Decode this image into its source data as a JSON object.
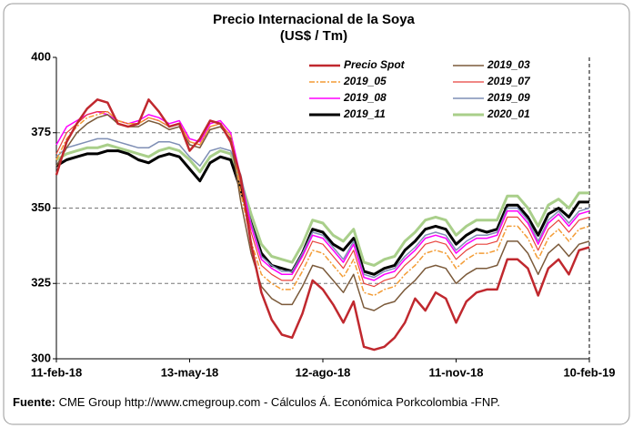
{
  "chart_data": {
    "type": "line",
    "title": "Precio Internacional de la Soya",
    "subtitle": "(US$ / Tm)",
    "categories": [
      "11-feb-18",
      null,
      null,
      null,
      null,
      null,
      null,
      null,
      null,
      null,
      null,
      null,
      null,
      "13-may-18",
      null,
      null,
      null,
      null,
      null,
      null,
      null,
      null,
      null,
      null,
      null,
      null,
      "12-ago-18",
      null,
      null,
      null,
      null,
      null,
      null,
      null,
      null,
      null,
      null,
      null,
      null,
      "11-nov-18",
      null,
      null,
      null,
      null,
      null,
      null,
      null,
      null,
      null,
      null,
      null,
      null,
      "10-feb-19"
    ],
    "ylim": [
      300,
      400
    ],
    "yticks": [
      300,
      325,
      350,
      375,
      400
    ],
    "grid": true,
    "legend": "top-right",
    "series": [
      {
        "name": "Precio Spot",
        "color": "#c0282e",
        "values": [
          361,
          372,
          378,
          383,
          386,
          385,
          378,
          377,
          378,
          386,
          382,
          377,
          378,
          369,
          373,
          379,
          378,
          372,
          360,
          338,
          322,
          313,
          308,
          307,
          315,
          326,
          323,
          318,
          312,
          319,
          304,
          303,
          304,
          307,
          312,
          320,
          316,
          322,
          320,
          312,
          319,
          322,
          323,
          323,
          333,
          333,
          330,
          321,
          330,
          333,
          328,
          336,
          337
        ]
      },
      {
        "name": "2019_03",
        "color": "#7b5a3a",
        "values": [
          364,
          370,
          375,
          378,
          380,
          381,
          378,
          377,
          377,
          379,
          378,
          376,
          377,
          371,
          370,
          376,
          377,
          373,
          352,
          335,
          324,
          320,
          318,
          318,
          324,
          331,
          330,
          326,
          322,
          328,
          317,
          316,
          318,
          319,
          323,
          326,
          330,
          331,
          330,
          325,
          328,
          330,
          330,
          331,
          339,
          339,
          335,
          328,
          335,
          338,
          334,
          338,
          339
        ]
      },
      {
        "name": "2019_05",
        "color": "#f39c35",
        "values": [
          366,
          373,
          377,
          380,
          381,
          382,
          379,
          378,
          378,
          380,
          379,
          377,
          378,
          372,
          371,
          377,
          378,
          374,
          355,
          339,
          328,
          325,
          323,
          323,
          329,
          336,
          335,
          331,
          327,
          333,
          322,
          321,
          323,
          324,
          328,
          331,
          335,
          336,
          335,
          330,
          333,
          335,
          335,
          336,
          344,
          344,
          340,
          333,
          340,
          343,
          339,
          343,
          344
        ]
      },
      {
        "name": "2019_07",
        "color": "#e8423c",
        "values": [
          368,
          375,
          378,
          381,
          382,
          382,
          379,
          378,
          378,
          380,
          379,
          377,
          378,
          372,
          371,
          377,
          378,
          374,
          358,
          342,
          331,
          328,
          326,
          326,
          332,
          339,
          338,
          334,
          330,
          336,
          325,
          324,
          326,
          327,
          331,
          334,
          338,
          339,
          338,
          333,
          336,
          338,
          338,
          339,
          347,
          347,
          343,
          336,
          343,
          346,
          342,
          346,
          347
        ]
      },
      {
        "name": "2019_08",
        "color": "#ff00ff",
        "values": [
          371,
          377,
          379,
          381,
          382,
          381,
          379,
          378,
          379,
          381,
          380,
          378,
          379,
          373,
          372,
          378,
          379,
          375,
          360,
          344,
          333,
          330,
          328,
          328,
          334,
          341,
          340,
          336,
          332,
          338,
          327,
          326,
          328,
          329,
          333,
          336,
          340,
          341,
          340,
          335,
          338,
          340,
          340,
          341,
          349,
          349,
          345,
          338,
          345,
          348,
          344,
          348,
          349
        ]
      },
      {
        "name": "2019_09",
        "color": "#7f8fb5",
        "values": [
          367,
          370,
          371,
          372,
          373,
          373,
          372,
          371,
          370,
          370,
          372,
          372,
          371,
          367,
          364,
          369,
          370,
          369,
          361,
          345,
          334,
          331,
          329,
          329,
          335,
          342,
          341,
          337,
          333,
          339,
          328,
          327,
          329,
          330,
          334,
          337,
          341,
          342,
          341,
          336,
          339,
          341,
          341,
          342,
          350,
          350,
          346,
          339,
          346,
          349,
          345,
          349,
          350
        ]
      },
      {
        "name": "2019_11",
        "color": "#000000",
        "values": [
          364,
          366,
          367,
          368,
          368,
          369,
          369,
          368,
          366,
          365,
          367,
          368,
          367,
          363,
          359,
          365,
          367,
          366,
          356,
          345,
          335,
          331,
          330,
          329,
          335,
          343,
          342,
          338,
          336,
          340,
          329,
          328,
          330,
          331,
          336,
          339,
          343,
          344,
          343,
          338,
          341,
          343,
          342,
          343,
          351,
          351,
          347,
          341,
          348,
          350,
          347,
          352,
          352
        ]
      },
      {
        "name": "2020_01",
        "color": "#a9cf8a",
        "values": [
          366,
          368,
          369,
          370,
          370,
          371,
          370,
          369,
          368,
          367,
          369,
          370,
          369,
          366,
          362,
          367,
          369,
          368,
          359,
          348,
          338,
          334,
          333,
          332,
          338,
          346,
          345,
          341,
          339,
          343,
          332,
          331,
          333,
          334,
          339,
          342,
          346,
          347,
          346,
          341,
          344,
          346,
          346,
          346,
          354,
          354,
          350,
          344,
          351,
          353,
          350,
          355,
          355
        ]
      }
    ],
    "source_label": "Fuente:",
    "source_text": "CME Group http://www.cmegroup.com - Cálculos Á. Económica Porkcolombia -FNP."
  }
}
